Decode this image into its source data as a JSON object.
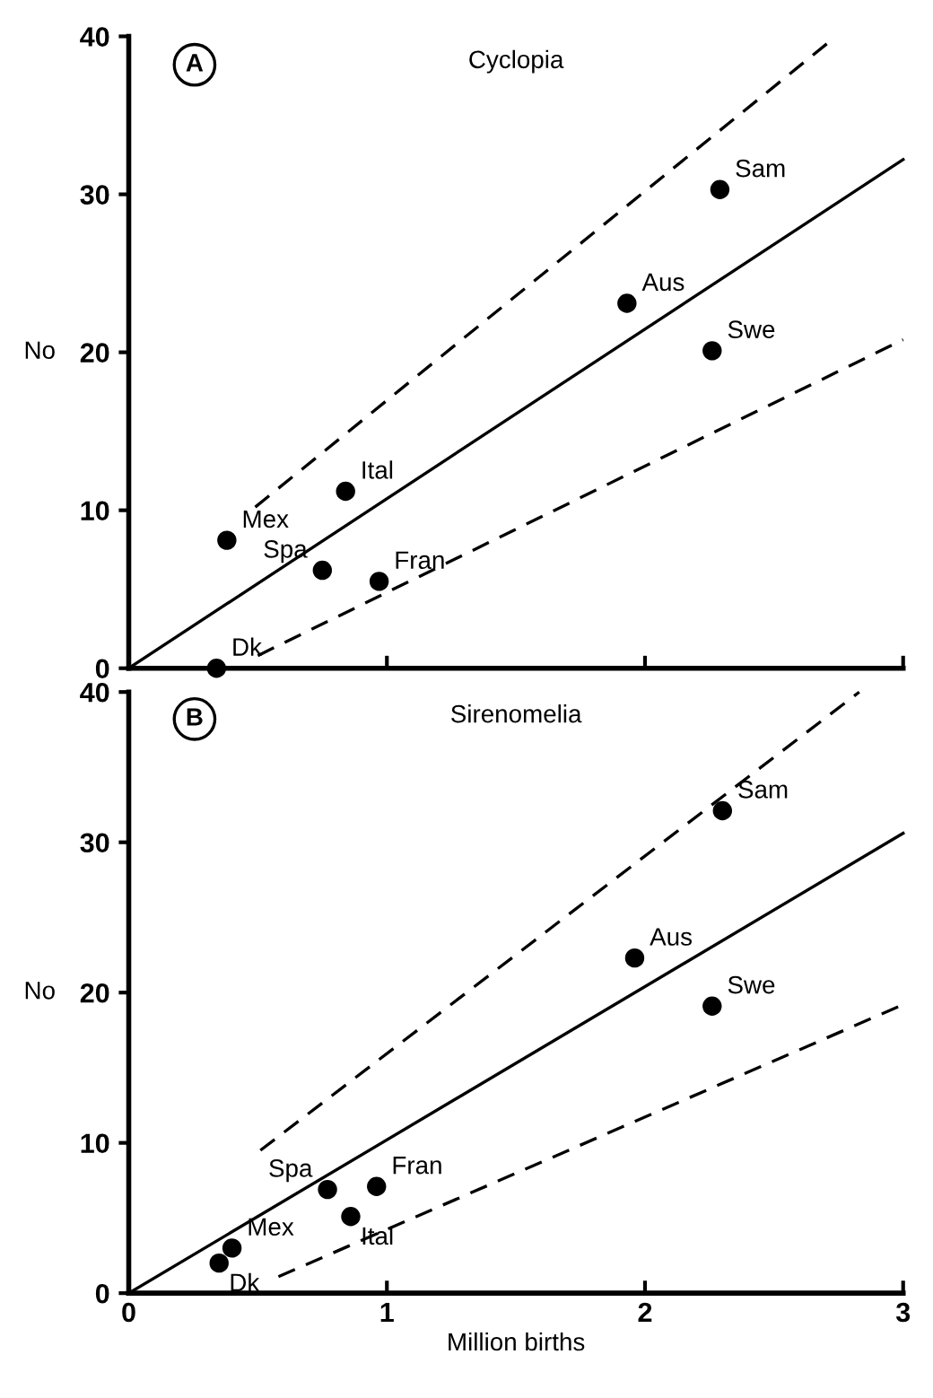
{
  "chart_data": [
    {
      "type": "scatter",
      "title": "Cyclopia",
      "ylabel": "No",
      "series": [
        {
          "type": "scatter",
          "color": "#000000",
          "marker": "circle",
          "x": [
            0.34,
            0.38,
            0.75,
            0.84,
            0.97,
            1.93,
            2.26,
            2.29
          ],
          "values": [
            0,
            8.1,
            6.2,
            11.2,
            5.5,
            23.1,
            20.1,
            30.3
          ]
        },
        {
          "type": "line",
          "color": "#000000",
          "line_style": "solid",
          "x": [
            0,
            3
          ],
          "values": [
            0,
            32.2
          ]
        },
        {
          "type": "line",
          "color": "#000000",
          "line_style": "dashed",
          "x": [
            0.49,
            2.74
          ],
          "values": [
            10.2,
            40
          ]
        },
        {
          "type": "line",
          "color": "#000000",
          "line_style": "dashed",
          "x": [
            0.5,
            3
          ],
          "values": [
            0.8,
            20.8
          ]
        }
      ],
      "annotations": [
        "A",
        {
          "text": "Dk",
          "x": 0.34,
          "y": 0
        },
        {
          "text": "Mex",
          "x": 0.38,
          "y": 8.1
        },
        {
          "text": "Spa",
          "x": 0.75,
          "y": 6.2
        },
        {
          "text": "Ital",
          "x": 0.84,
          "y": 11.2
        },
        {
          "text": "Fran",
          "x": 0.97,
          "y": 5.5
        },
        {
          "text": "Aus",
          "x": 1.93,
          "y": 23.1
        },
        {
          "text": "Swe",
          "x": 2.26,
          "y": 20.1
        },
        {
          "text": "Sam",
          "x": 2.29,
          "y": 30.3
        }
      ],
      "xlim": [
        0,
        3
      ],
      "xticks": [
        {
          "value": 0,
          "label": null
        },
        {
          "value": 1,
          "label": null
        },
        {
          "value": 2,
          "label": null
        },
        {
          "value": 3,
          "label": null
        }
      ],
      "ylim": [
        0,
        40
      ],
      "yticks": [
        0,
        10,
        20,
        30,
        40
      ],
      "tick_labels": "y",
      "grid": false,
      "legend": false
    },
    {
      "type": "scatter",
      "title": "Sirenomelia",
      "ylabel": "No",
      "xlabel": "Million births",
      "series": [
        {
          "type": "scatter",
          "color": "#000000",
          "marker": "circle",
          "x": [
            0.35,
            0.4,
            0.77,
            0.86,
            0.96,
            1.96,
            2.26,
            2.3
          ],
          "values": [
            2.0,
            3.0,
            6.9,
            5.1,
            7.1,
            22.3,
            19.1,
            32.1
          ]
        },
        {
          "type": "line",
          "color": "#000000",
          "line_style": "solid",
          "x": [
            0,
            3
          ],
          "values": [
            0,
            30.6
          ]
        },
        {
          "type": "line",
          "color": "#000000",
          "line_style": "dashed",
          "x": [
            0.51,
            2.83
          ],
          "values": [
            9.5,
            40
          ]
        },
        {
          "type": "line",
          "color": "#000000",
          "line_style": "dashed",
          "x": [
            0.58,
            3
          ],
          "values": [
            1.1,
            19.2
          ]
        }
      ],
      "annotations": [
        "B",
        {
          "text": "Dk",
          "x": 0.35,
          "y": 2.0
        },
        {
          "text": "Mex",
          "x": 0.4,
          "y": 3.0
        },
        {
          "text": "Spa",
          "x": 0.77,
          "y": 6.9
        },
        {
          "text": "Ital",
          "x": 0.86,
          "y": 5.1
        },
        {
          "text": "Fran",
          "x": 0.96,
          "y": 7.1
        },
        {
          "text": "Aus",
          "x": 1.96,
          "y": 22.3
        },
        {
          "text": "Swe",
          "x": 2.26,
          "y": 19.1
        },
        {
          "text": "Sam",
          "x": 2.3,
          "y": 32.1
        }
      ],
      "xlim": [
        0,
        3
      ],
      "xticks": [
        0,
        1,
        2,
        3
      ],
      "ylim": [
        0,
        40
      ],
      "yticks": [
        0,
        10,
        20,
        30,
        40
      ],
      "grid": false,
      "legend": false
    }
  ]
}
